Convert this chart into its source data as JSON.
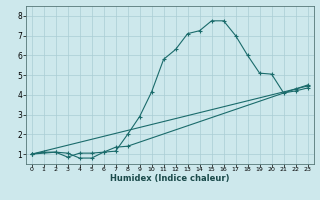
{
  "xlabel": "Humidex (Indice chaleur)",
  "background_color": "#cde8ec",
  "grid_color": "#aacdd4",
  "line_color": "#1a6b6b",
  "xlim": [
    -0.5,
    23.5
  ],
  "ylim": [
    0.5,
    8.5
  ],
  "xticks": [
    0,
    1,
    2,
    3,
    4,
    5,
    6,
    7,
    8,
    9,
    10,
    11,
    12,
    13,
    14,
    15,
    16,
    17,
    18,
    19,
    20,
    21,
    22,
    23
  ],
  "yticks": [
    1,
    2,
    3,
    4,
    5,
    6,
    7,
    8
  ],
  "curve1_x": [
    0,
    1,
    2,
    3,
    4,
    5,
    6,
    7,
    8,
    9,
    10,
    11,
    12,
    13,
    14,
    15,
    16,
    17,
    18,
    19,
    20,
    21,
    22,
    23
  ],
  "curve1_y": [
    1.0,
    1.1,
    1.1,
    0.85,
    1.05,
    1.05,
    1.1,
    1.15,
    2.0,
    2.9,
    4.15,
    5.8,
    6.3,
    7.1,
    7.25,
    7.75,
    7.75,
    7.0,
    6.0,
    5.1,
    5.05,
    4.1,
    4.2,
    4.35
  ],
  "curve2_x": [
    0,
    2,
    3,
    4,
    5,
    6,
    7,
    8,
    22,
    23
  ],
  "curve2_y": [
    1.0,
    1.1,
    1.05,
    0.8,
    0.8,
    1.1,
    1.35,
    1.4,
    4.3,
    4.5
  ],
  "curve3_x": [
    0,
    23
  ],
  "curve3_y": [
    1.0,
    4.45
  ]
}
